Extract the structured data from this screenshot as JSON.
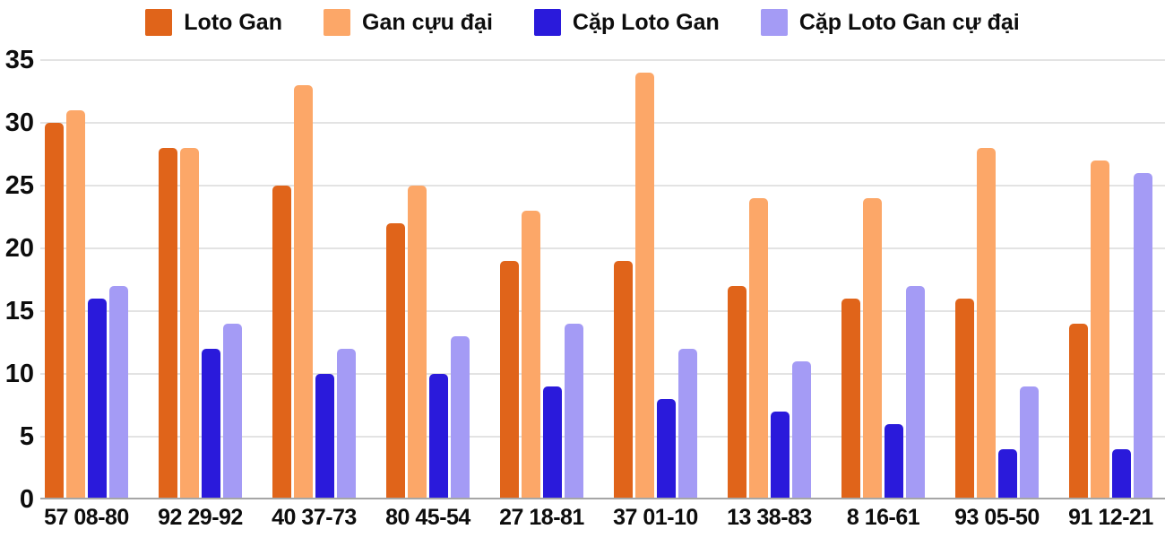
{
  "legend": {
    "items": [
      {
        "label": "Loto Gan",
        "color": "#E0641A"
      },
      {
        "label": "Gan cựu đại",
        "color": "#FCA768"
      },
      {
        "label": "Cặp Loto Gan",
        "color": "#2A1ADB"
      },
      {
        "label": "Cặp Loto Gan cự đại",
        "color": "#A49BF5"
      }
    ]
  },
  "chart_data": {
    "type": "bar",
    "title": "",
    "xlabel": "",
    "ylabel": "",
    "categories": [
      "57 08-80",
      "92 29-92",
      "40 37-73",
      "80 45-54",
      "27 18-81",
      "37 01-10",
      "13 38-83",
      "8 16-61",
      "93 05-50",
      "91 12-21"
    ],
    "series": [
      {
        "name": "Loto Gan",
        "color": "#E0641A",
        "values": [
          30,
          28,
          25,
          22,
          19,
          19,
          17,
          16,
          16,
          14
        ]
      },
      {
        "name": "Gan cựu đại",
        "color": "#FCA768",
        "values": [
          31,
          28,
          33,
          25,
          23,
          34,
          24,
          24,
          28,
          27
        ]
      },
      {
        "name": "Cặp Loto Gan",
        "color": "#2A1ADB",
        "values": [
          16,
          12,
          10,
          10,
          9,
          8,
          7,
          6,
          4,
          4
        ]
      },
      {
        "name": "Cặp Loto Gan cự đại",
        "color": "#A49BF5",
        "values": [
          17,
          14,
          12,
          13,
          14,
          12,
          11,
          17,
          9,
          26
        ]
      }
    ],
    "ylim": [
      0,
      35
    ],
    "yticks": [
      0,
      5,
      10,
      15,
      20,
      25,
      30,
      35
    ],
    "grid": true,
    "legend_position": "top"
  },
  "colors": {
    "background": "#ffffff",
    "gridline": "#e3e3e3",
    "baseline": "#a6a6a6",
    "text": "#0d0d0d"
  }
}
